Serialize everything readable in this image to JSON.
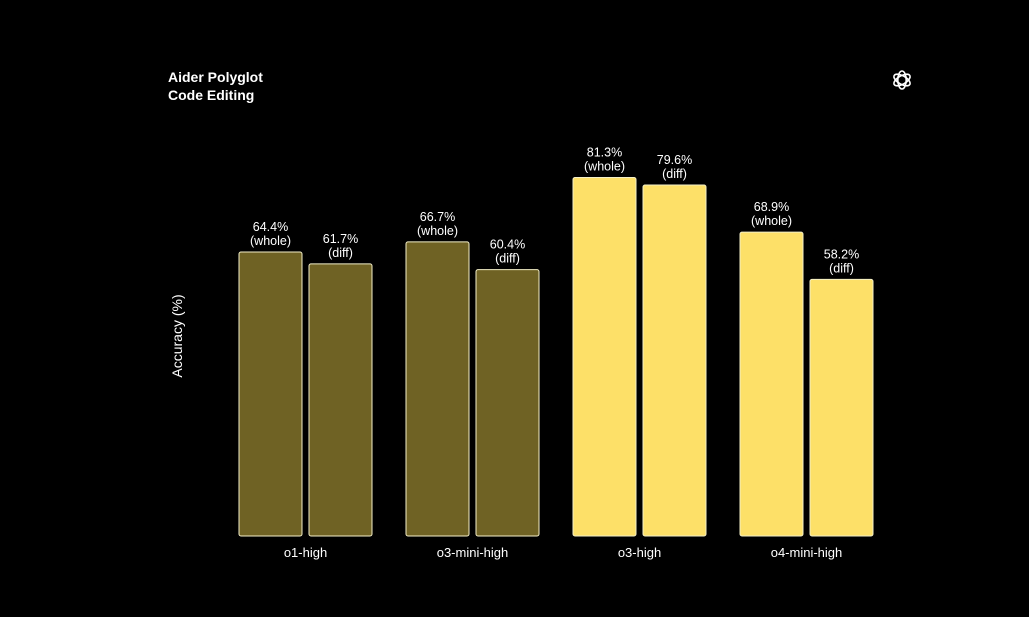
{
  "chart_data": {
    "type": "bar",
    "title": [
      "Aider Polyglot",
      "Code Editing"
    ],
    "ylabel": "Accuracy (%)",
    "xlabel": "",
    "ylim": [
      0,
      100
    ],
    "grid": false,
    "categories": [
      "o1-high",
      "o3-mini-high",
      "o3-high",
      "o4-mini-high"
    ],
    "series": [
      {
        "name": "whole",
        "label": "(whole)",
        "values": [
          64.4,
          66.7,
          81.3,
          68.9
        ]
      },
      {
        "name": "diff",
        "label": "(diff)",
        "values": [
          61.7,
          60.4,
          79.6,
          58.2
        ]
      }
    ],
    "value_labels": [
      [
        "64.4%",
        "66.7%",
        "81.3%",
        "68.9%"
      ],
      [
        "61.7%",
        "60.4%",
        "79.6%",
        "58.2%"
      ]
    ],
    "colors": [
      "#6f6224",
      "#6f6224",
      "#fde068",
      "#fde068"
    ],
    "bar_border": "#f4efc7"
  },
  "logo": "openai-logo-icon"
}
